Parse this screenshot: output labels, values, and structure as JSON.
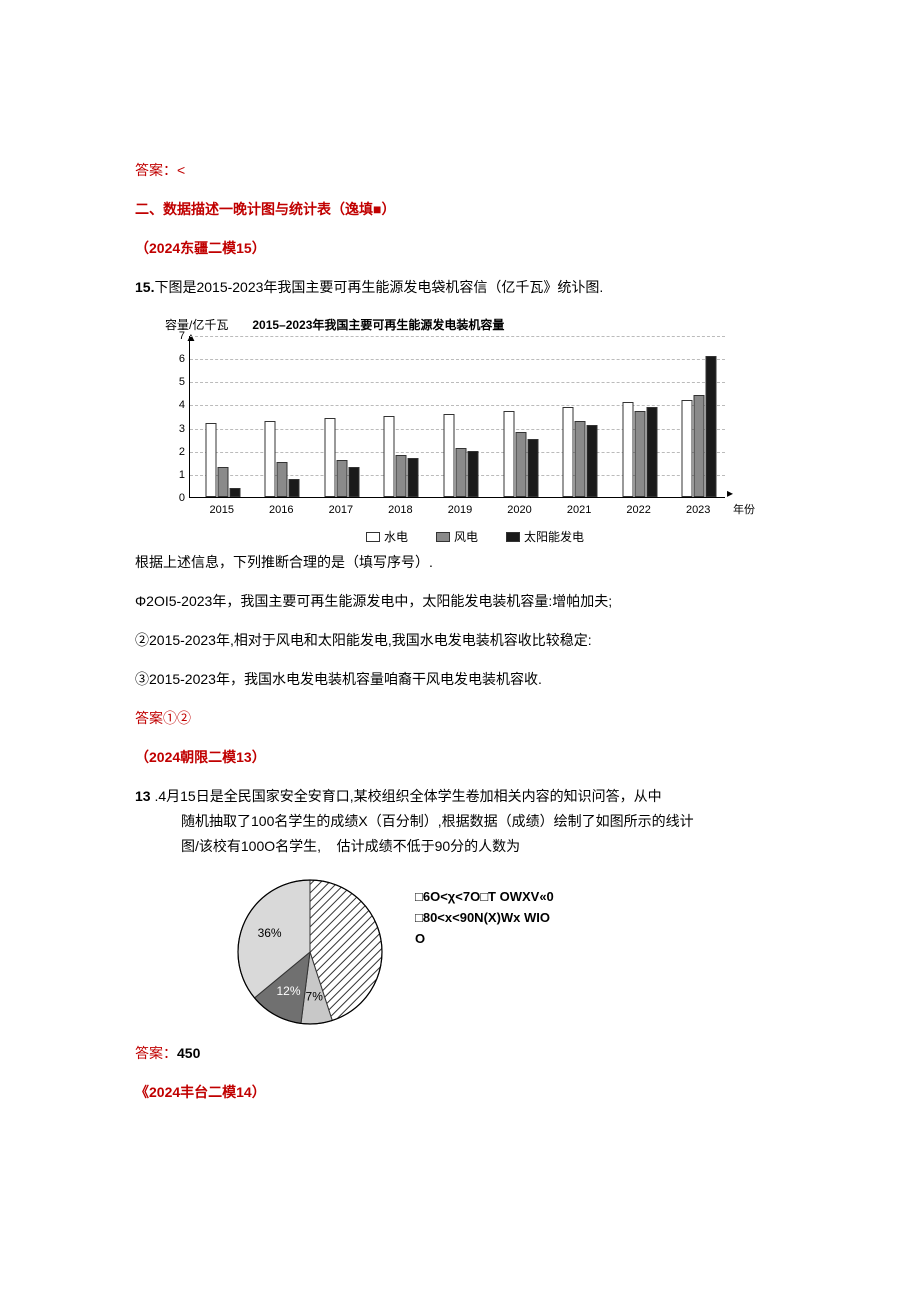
{
  "answer_lt": "答案：<",
  "section_header": "二、数据描述一晚计图与统计表（逸填■）",
  "q15_src": "（2024东疆二模15）",
  "q15_stem_a": "15.",
  "q15_stem_b": "下图是2015-2023年我国主要可再生能源发电袋机容信（亿千瓦》统讣图.",
  "chart": {
    "ylabel": "容量/亿千瓦",
    "title": "2015–2023年我国主要可再生能源发电装机容量",
    "xlabel": "年份",
    "categories": [
      "2015",
      "2016",
      "2017",
      "2018",
      "2019",
      "2020",
      "2021",
      "2022",
      "2023"
    ],
    "ymax": 7,
    "yticks": [
      0,
      1,
      2,
      3,
      4,
      5,
      6,
      7
    ],
    "series": [
      {
        "name": "水电",
        "color": "#ffffff",
        "values": [
          3.2,
          3.3,
          3.4,
          3.5,
          3.6,
          3.7,
          3.9,
          4.1,
          4.2
        ]
      },
      {
        "name": "风电",
        "color": "#8a8a8a",
        "values": [
          1.3,
          1.5,
          1.6,
          1.8,
          2.1,
          2.8,
          3.3,
          3.7,
          4.4
        ]
      },
      {
        "name": "太阳能发电",
        "color": "#1a1a1a",
        "values": [
          0.4,
          0.8,
          1.3,
          1.7,
          2.0,
          2.5,
          3.1,
          3.9,
          6.1
        ]
      }
    ]
  },
  "q15_prompt": "根据上述信息，下列推断合理的是（填写序号）.",
  "q15_opt1": "Φ2OI5-2023年，我国主要可再生能源发电中，太阳能发电装机容量:增帕加夫;",
  "q15_opt2": "②2015-2023年,相对于风电和太阳能发电,我国水电发电装机容收比较稳定:",
  "q15_opt3": "③2015-2023年，我国水电发电装机容量咱裔干风电发电装机容收.",
  "q15_ans": "答案①②",
  "q13_src": "（2024朝限二模13）",
  "q13_stem_a": "13",
  "q13_stem_b": " .4月15日是全民国家安全安育口,某校组织全体学生卷加相关内容的知识问答，从中",
  "q13_line2": "随机抽取了100名学生的成绩X（百分制）,根据数据（成绩）绘制了如图所示的线计",
  "q13_line3a": "图/该校有100O名学生,",
  "q13_line3b": "估计成绩不低于90分的人数为",
  "pie": {
    "slices": [
      {
        "pct": 45,
        "fill": "hatch",
        "label": ""
      },
      {
        "pct": 7,
        "fill": "#c8c8c8",
        "label": "7%"
      },
      {
        "pct": 12,
        "fill": "#707070",
        "label": "12%"
      },
      {
        "pct": 36,
        "fill": "#d9d9d9",
        "label": "36%"
      }
    ],
    "legend_text": "□6O<χ<7O□T OWXV«0□80<x<90N(X)Wx WIOO"
  },
  "q13_ans_label": "答案：",
  "q13_ans_val": "450",
  "q14_src": "《2024丰台二模14）"
}
